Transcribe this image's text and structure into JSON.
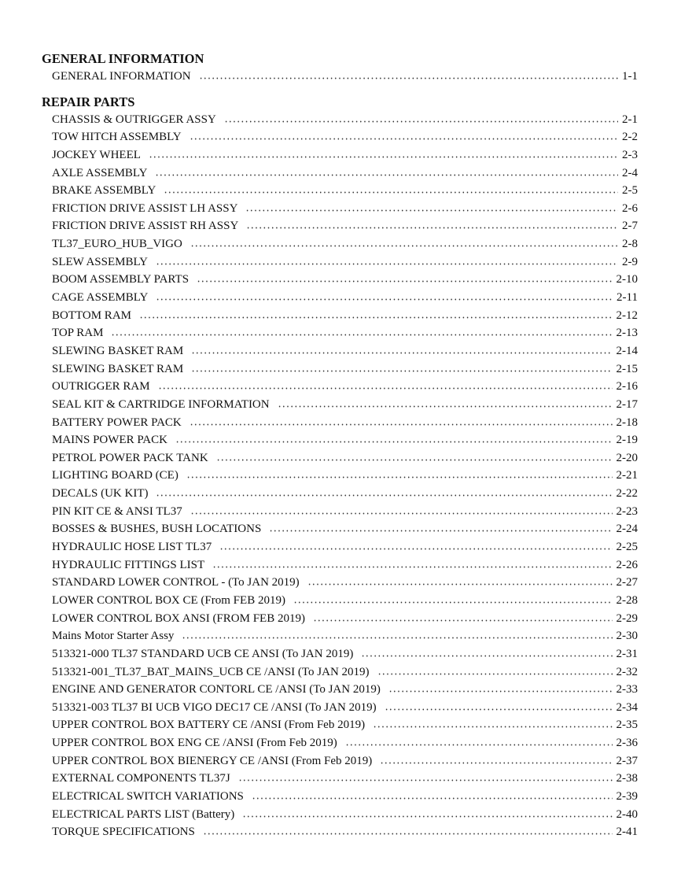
{
  "sections": [
    {
      "heading": "GENERAL INFORMATION",
      "entries": [
        {
          "title": "GENERAL INFORMATION",
          "page": "1-1"
        }
      ]
    },
    {
      "heading": "REPAIR PARTS",
      "entries": [
        {
          "title": "CHASSIS & OUTRIGGER ASSY",
          "page": "2-1"
        },
        {
          "title": "TOW HITCH ASSEMBLY",
          "page": "2-2"
        },
        {
          "title": "JOCKEY WHEEL",
          "page": "2-3"
        },
        {
          "title": "AXLE ASSEMBLY",
          "page": "2-4"
        },
        {
          "title": "BRAKE ASSEMBLY",
          "page": "2-5"
        },
        {
          "title": "FRICTION DRIVE ASSIST LH ASSY",
          "page": "2-6"
        },
        {
          "title": "FRICTION DRIVE ASSIST RH ASSY",
          "page": "2-7"
        },
        {
          "title": "TL37_EURO_HUB_VIGO",
          "page": "2-8"
        },
        {
          "title": "SLEW ASSEMBLY",
          "page": "2-9"
        },
        {
          "title": "BOOM ASSEMBLY PARTS",
          "page": "2-10"
        },
        {
          "title": "CAGE ASSEMBLY",
          "page": "2-11"
        },
        {
          "title": "BOTTOM RAM",
          "page": "2-12"
        },
        {
          "title": "TOP RAM",
          "page": "2-13"
        },
        {
          "title": "SLEWING BASKET RAM",
          "page": "2-14"
        },
        {
          "title": "SLEWING BASKET RAM",
          "page": "2-15"
        },
        {
          "title": "OUTRIGGER RAM",
          "page": "2-16"
        },
        {
          "title": "SEAL KIT & CARTRIDGE INFORMATION",
          "page": "2-17"
        },
        {
          "title": "BATTERY POWER PACK",
          "page": "2-18"
        },
        {
          "title": "MAINS POWER PACK",
          "page": "2-19"
        },
        {
          "title": "PETROL POWER PACK TANK",
          "page": "2-20"
        },
        {
          "title": "LIGHTING BOARD (CE)",
          "page": "2-21"
        },
        {
          "title": "DECALS (UK KIT)",
          "page": "2-22"
        },
        {
          "title": "PIN KIT CE & ANSI TL37",
          "page": "2-23"
        },
        {
          "title": "BOSSES & BUSHES, BUSH LOCATIONS",
          "page": "2-24"
        },
        {
          "title": "HYDRAULIC HOSE LIST TL37",
          "page": "2-25"
        },
        {
          "title": "HYDRAULIC FITTINGS LIST",
          "page": "2-26"
        },
        {
          "title": "STANDARD LOWER CONTROL - (To JAN 2019)",
          "page": "2-27"
        },
        {
          "title": "LOWER CONTROL BOX CE (From FEB 2019)",
          "page": "2-28"
        },
        {
          "title": "LOWER CONTROL BOX ANSI (FROM FEB 2019)",
          "page": "2-29"
        },
        {
          "title": "Mains Motor Starter Assy",
          "page": "2-30"
        },
        {
          "title": "513321-000 TL37 STANDARD UCB CE ANSI (To JAN 2019)",
          "page": "2-31"
        },
        {
          "title": "513321-001_TL37_BAT_MAINS_UCB CE /ANSI (To JAN 2019)",
          "page": "2-32"
        },
        {
          "title": "ENGINE AND GENERATOR CONTORL CE /ANSI (To JAN 2019)",
          "page": "2-33"
        },
        {
          "title": "513321-003 TL37 BI UCB VIGO DEC17 CE /ANSI (To JAN 2019)",
          "page": "2-34"
        },
        {
          "title": "UPPER CONTROL BOX BATTERY CE /ANSI (From Feb 2019)",
          "page": "2-35"
        },
        {
          "title": "UPPER CONTROL BOX ENG CE /ANSI (From Feb 2019)",
          "page": "2-36"
        },
        {
          "title": "UPPER CONTROL BOX BIENERGY CE /ANSI (From Feb 2019)",
          "page": "2-37"
        },
        {
          "title": "EXTERNAL COMPONENTS TL37J",
          "page": "2-38"
        },
        {
          "title": "ELECTRICAL SWITCH VARIATIONS",
          "page": "2-39"
        },
        {
          "title": "ELECTRICAL PARTS LIST (Battery)",
          "page": "2-40"
        },
        {
          "title": "TORQUE SPECIFICATIONS",
          "page": "2-41"
        }
      ]
    }
  ]
}
